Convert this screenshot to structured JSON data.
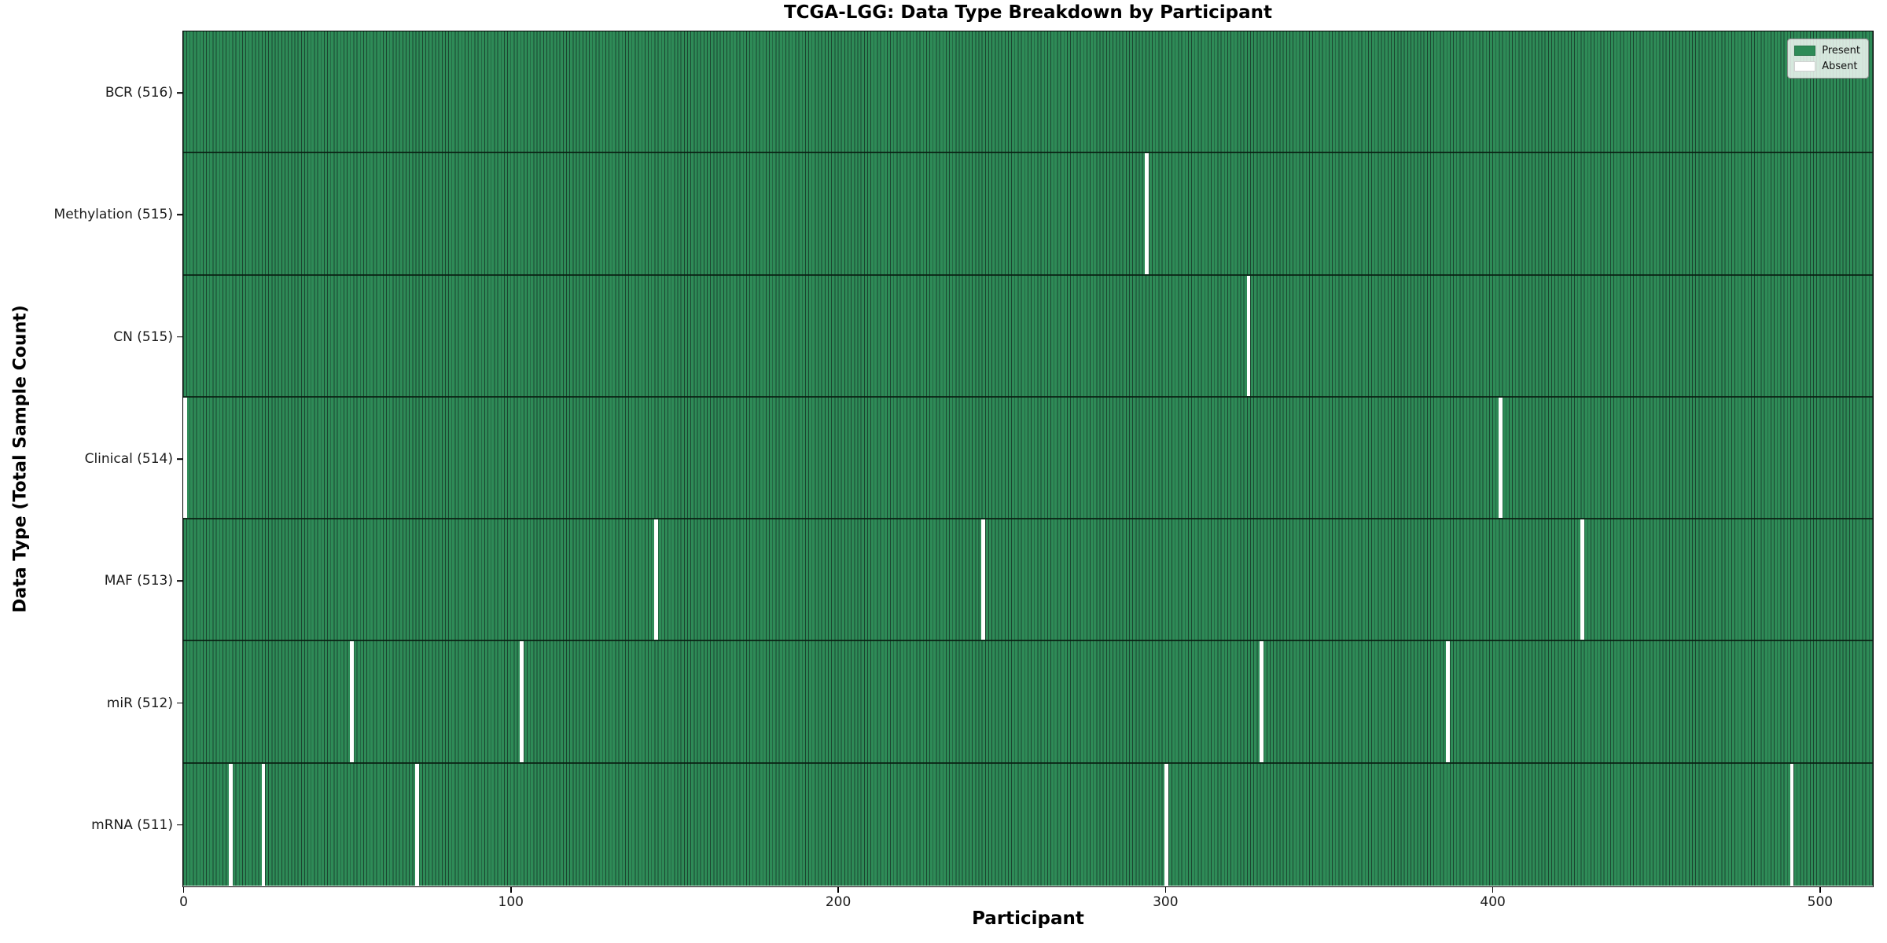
{
  "title": "TCGA-LGG: Data Type Breakdown by Participant",
  "colors": {
    "present": "#2e8b57",
    "absent": "#ffffff",
    "cell_edge": "#1b4530",
    "axis": "#000000",
    "legend_border": "#8f8f8f"
  },
  "chart_data": {
    "type": "heatmap",
    "title": "TCGA-LGG: Data Type Breakdown by Participant",
    "xlabel": "Participant",
    "ylabel": "Data Type (Total Sample Count)",
    "n_participants": 516,
    "x_ticks": [
      0,
      100,
      200,
      300,
      400,
      500
    ],
    "xlim": [
      0,
      516
    ],
    "grid": false,
    "legend_position": "upper right",
    "legend": [
      {
        "label": "Present",
        "color": "#2e8b57"
      },
      {
        "label": "Absent",
        "color": "#ffffff"
      }
    ],
    "rows": [
      {
        "key": "bcr",
        "label": "BCR (516)",
        "data_type": "BCR",
        "total": 516,
        "absent_count": 0,
        "absent_participants": []
      },
      {
        "key": "methylation",
        "label": "Methylation (515)",
        "data_type": "Methylation",
        "total": 515,
        "absent_count": 1,
        "absent_participants": [
          294
        ]
      },
      {
        "key": "cn",
        "label": "CN (515)",
        "data_type": "CN",
        "total": 515,
        "absent_count": 1,
        "absent_participants": [
          325
        ]
      },
      {
        "key": "clinical",
        "label": "Clinical (514)",
        "data_type": "Clinical",
        "total": 514,
        "absent_count": 2,
        "absent_participants": [
          0,
          402
        ]
      },
      {
        "key": "maf",
        "label": "MAF (513)",
        "data_type": "MAF",
        "total": 513,
        "absent_count": 3,
        "absent_participants": [
          144,
          244,
          427
        ]
      },
      {
        "key": "mir",
        "label": "miR (512)",
        "data_type": "miR",
        "total": 512,
        "absent_count": 4,
        "absent_participants": [
          51,
          103,
          329,
          386
        ]
      },
      {
        "key": "mrna",
        "label": "mRNA (511)",
        "data_type": "mRNA",
        "total": 511,
        "absent_count": 5,
        "absent_participants": [
          14,
          24,
          71,
          300,
          491
        ]
      }
    ]
  }
}
